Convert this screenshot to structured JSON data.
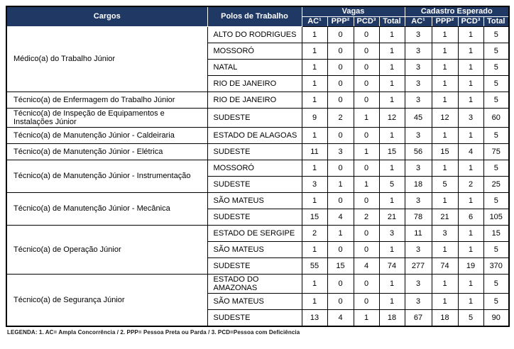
{
  "table": {
    "columns": {
      "cargos": "Cargos",
      "polos": "Polos de Trabalho",
      "vagas_group": "Vagas",
      "cadastro_group": "Cadastro Esperado",
      "sub": [
        "AC¹",
        "PPP²",
        "PCD³",
        "Total"
      ]
    },
    "groups": [
      {
        "cargo": "Médico(a) do Trabalho Júnior",
        "rows": [
          {
            "polo": "ALTO DO RODRIGUES",
            "vagas": [
              1,
              0,
              0,
              1
            ],
            "cadastro": [
              3,
              1,
              1,
              5
            ]
          },
          {
            "polo": "MOSSORÓ",
            "vagas": [
              1,
              0,
              0,
              1
            ],
            "cadastro": [
              3,
              1,
              1,
              5
            ]
          },
          {
            "polo": "NATAL",
            "vagas": [
              1,
              0,
              0,
              1
            ],
            "cadastro": [
              3,
              1,
              1,
              5
            ]
          },
          {
            "polo": "RIO DE JANEIRO",
            "vagas": [
              1,
              0,
              0,
              1
            ],
            "cadastro": [
              3,
              1,
              1,
              5
            ]
          }
        ]
      },
      {
        "cargo": "Técnico(a) de Enfermagem do Trabalho Júnior",
        "rows": [
          {
            "polo": "RIO DE JANEIRO",
            "vagas": [
              1,
              0,
              0,
              1
            ],
            "cadastro": [
              3,
              1,
              1,
              5
            ]
          }
        ]
      },
      {
        "cargo": "Técnico(a) de Inspeção de Equipamentos e Instalações Júnior",
        "rows": [
          {
            "polo": "SUDESTE",
            "vagas": [
              9,
              2,
              1,
              12
            ],
            "cadastro": [
              45,
              12,
              3,
              60
            ]
          }
        ]
      },
      {
        "cargo": "Técnico(a) de Manutenção Júnior - Caldeiraria",
        "rows": [
          {
            "polo": "ESTADO DE ALAGOAS",
            "vagas": [
              1,
              0,
              0,
              1
            ],
            "cadastro": [
              3,
              1,
              1,
              5
            ]
          }
        ]
      },
      {
        "cargo": "Técnico(a) de Manutenção Júnior - Elétrica",
        "rows": [
          {
            "polo": "SUDESTE",
            "vagas": [
              11,
              3,
              1,
              15
            ],
            "cadastro": [
              56,
              15,
              4,
              75
            ]
          }
        ]
      },
      {
        "cargo": "Técnico(a) de Manutenção Júnior - Instrumentação",
        "rows": [
          {
            "polo": "MOSSORÓ",
            "vagas": [
              1,
              0,
              0,
              1
            ],
            "cadastro": [
              3,
              1,
              1,
              5
            ]
          },
          {
            "polo": "SUDESTE",
            "vagas": [
              3,
              1,
              1,
              5
            ],
            "cadastro": [
              18,
              5,
              2,
              25
            ]
          }
        ]
      },
      {
        "cargo": "Técnico(a) de Manutenção Júnior - Mecânica",
        "rows": [
          {
            "polo": "SÃO MATEUS",
            "vagas": [
              1,
              0,
              0,
              1
            ],
            "cadastro": [
              3,
              1,
              1,
              5
            ]
          },
          {
            "polo": "SUDESTE",
            "vagas": [
              15,
              4,
              2,
              21
            ],
            "cadastro": [
              78,
              21,
              6,
              105
            ]
          }
        ]
      },
      {
        "cargo": "Técnico(a) de Operação Júnior",
        "rows": [
          {
            "polo": "ESTADO DE SERGIPE",
            "vagas": [
              2,
              1,
              0,
              3
            ],
            "cadastro": [
              11,
              3,
              1,
              15
            ]
          },
          {
            "polo": "SÃO MATEUS",
            "vagas": [
              1,
              0,
              0,
              1
            ],
            "cadastro": [
              3,
              1,
              1,
              5
            ]
          },
          {
            "polo": "SUDESTE",
            "vagas": [
              55,
              15,
              4,
              74
            ],
            "cadastro": [
              277,
              74,
              19,
              370
            ]
          }
        ]
      },
      {
        "cargo": "Técnico(a) de Segurança Júnior",
        "rows": [
          {
            "polo": "ESTADO DO AMAZONAS",
            "vagas": [
              1,
              0,
              0,
              1
            ],
            "cadastro": [
              3,
              1,
              1,
              5
            ]
          },
          {
            "polo": "SÃO MATEUS",
            "vagas": [
              1,
              0,
              0,
              1
            ],
            "cadastro": [
              3,
              1,
              1,
              5
            ]
          },
          {
            "polo": "SUDESTE",
            "vagas": [
              13,
              4,
              1,
              18
            ],
            "cadastro": [
              67,
              18,
              5,
              90
            ]
          }
        ]
      }
    ]
  },
  "legend": "LEGENDA: 1. AC= Ampla Concorrência / 2. PPP= Pessoa Preta ou Parda / 3. PCD=Pessoa com Deficiência",
  "colors": {
    "header_bg": "#1F3864",
    "header_text": "#FFFFFF",
    "border": "#000000"
  }
}
